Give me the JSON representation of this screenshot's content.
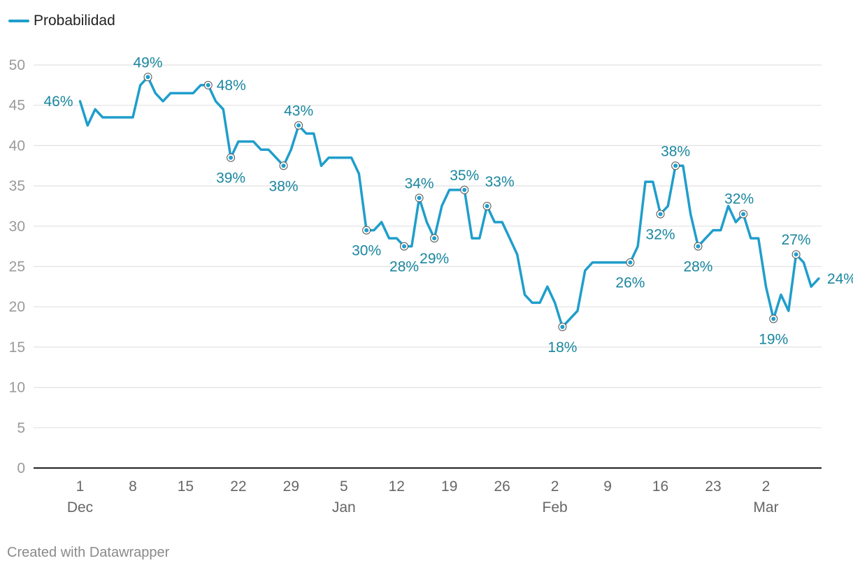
{
  "legend": {
    "label": "Probabilidad",
    "color": "#1f9ecb"
  },
  "footer": "Created with Datawrapper",
  "colors": {
    "line": "#1f9ecb",
    "annotation": "#19869f",
    "grid": "#e2e2e2",
    "axis": "#222222"
  },
  "chart_data": {
    "type": "line",
    "title": "",
    "xlabel": "",
    "ylabel": "",
    "ylim": [
      0,
      50
    ],
    "grid": true,
    "legend": "top-left",
    "yticks": [
      "0",
      "5",
      "10",
      "15",
      "20",
      "25",
      "30",
      "35",
      "40",
      "45",
      "50"
    ],
    "xticks": [
      {
        "day": 0,
        "label": "1",
        "sub": "Dec"
      },
      {
        "day": 7,
        "label": "8",
        "sub": ""
      },
      {
        "day": 14,
        "label": "15",
        "sub": ""
      },
      {
        "day": 21,
        "label": "22",
        "sub": ""
      },
      {
        "day": 28,
        "label": "29",
        "sub": ""
      },
      {
        "day": 35,
        "label": "5",
        "sub": "Jan"
      },
      {
        "day": 42,
        "label": "12",
        "sub": ""
      },
      {
        "day": 49,
        "label": "19",
        "sub": ""
      },
      {
        "day": 56,
        "label": "26",
        "sub": ""
      },
      {
        "day": 63,
        "label": "2",
        "sub": "Feb"
      },
      {
        "day": 70,
        "label": "9",
        "sub": ""
      },
      {
        "day": 77,
        "label": "16",
        "sub": ""
      },
      {
        "day": 84,
        "label": "23",
        "sub": ""
      },
      {
        "day": 91,
        "label": "2",
        "sub": "Mar"
      }
    ],
    "series": [
      {
        "name": "Probabilidad",
        "points": [
          [
            0,
            45.5
          ],
          [
            1,
            42.5
          ],
          [
            2,
            44.5
          ],
          [
            3,
            43.5
          ],
          [
            4,
            43.5
          ],
          [
            5,
            43.5
          ],
          [
            6,
            43.5
          ],
          [
            7,
            43.5
          ],
          [
            8,
            47.5
          ],
          [
            9,
            48.5
          ],
          [
            10,
            46.5
          ],
          [
            11,
            45.5
          ],
          [
            12,
            46.5
          ],
          [
            13,
            46.5
          ],
          [
            14,
            46.5
          ],
          [
            15,
            46.5
          ],
          [
            16,
            47.5
          ],
          [
            17,
            47.5
          ],
          [
            18,
            45.5
          ],
          [
            19,
            44.5
          ],
          [
            20,
            38.5
          ],
          [
            21,
            40.5
          ],
          [
            22,
            40.5
          ],
          [
            23,
            40.5
          ],
          [
            24,
            39.5
          ],
          [
            25,
            39.5
          ],
          [
            26,
            38.5
          ],
          [
            27,
            37.5
          ],
          [
            28,
            39.5
          ],
          [
            29,
            42.5
          ],
          [
            30,
            41.5
          ],
          [
            31,
            41.5
          ],
          [
            32,
            37.5
          ],
          [
            33,
            38.5
          ],
          [
            34,
            38.5
          ],
          [
            35,
            38.5
          ],
          [
            36,
            38.5
          ],
          [
            37,
            36.5
          ],
          [
            38,
            29.5
          ],
          [
            39,
            29.5
          ],
          [
            40,
            30.5
          ],
          [
            41,
            28.5
          ],
          [
            42,
            28.5
          ],
          [
            43,
            27.5
          ],
          [
            44,
            27.5
          ],
          [
            45,
            33.5
          ],
          [
            46,
            30.5
          ],
          [
            47,
            28.5
          ],
          [
            48,
            32.5
          ],
          [
            49,
            34.5
          ],
          [
            50,
            34.5
          ],
          [
            51,
            34.5
          ],
          [
            52,
            28.5
          ],
          [
            53,
            28.5
          ],
          [
            54,
            32.5
          ],
          [
            55,
            30.5
          ],
          [
            56,
            30.5
          ],
          [
            57,
            28.5
          ],
          [
            58,
            26.5
          ],
          [
            59,
            21.5
          ],
          [
            60,
            20.5
          ],
          [
            61,
            20.5
          ],
          [
            62,
            22.5
          ],
          [
            63,
            20.5
          ],
          [
            64,
            17.5
          ],
          [
            65,
            18.5
          ],
          [
            66,
            19.5
          ],
          [
            67,
            24.5
          ],
          [
            68,
            25.5
          ],
          [
            69,
            25.5
          ],
          [
            70,
            25.5
          ],
          [
            71,
            25.5
          ],
          [
            72,
            25.5
          ],
          [
            73,
            25.5
          ],
          [
            74,
            27.5
          ],
          [
            75,
            35.5
          ],
          [
            76,
            35.5
          ],
          [
            77,
            31.5
          ],
          [
            78,
            32.5
          ],
          [
            79,
            37.5
          ],
          [
            80,
            37.5
          ],
          [
            81,
            31.5
          ],
          [
            82,
            27.5
          ],
          [
            83,
            28.5
          ],
          [
            84,
            29.5
          ],
          [
            85,
            29.5
          ],
          [
            86,
            32.5
          ],
          [
            87,
            30.5
          ],
          [
            88,
            31.5
          ],
          [
            89,
            28.5
          ],
          [
            90,
            28.5
          ],
          [
            91,
            22.5
          ],
          [
            92,
            18.5
          ],
          [
            93,
            21.5
          ],
          [
            94,
            19.5
          ],
          [
            95,
            26.5
          ],
          [
            96,
            25.5
          ],
          [
            97,
            22.5
          ],
          [
            98,
            23.5
          ]
        ]
      }
    ],
    "annotations": [
      {
        "day": 0,
        "value": 45.5,
        "label": "46%",
        "marker": false,
        "pos": "left"
      },
      {
        "day": 9,
        "value": 48.5,
        "label": "49%",
        "marker": true,
        "pos": "above"
      },
      {
        "day": 17,
        "value": 47.5,
        "label": "48%",
        "marker": true,
        "pos": "right"
      },
      {
        "day": 20,
        "value": 38.5,
        "label": "39%",
        "marker": true,
        "pos": "below"
      },
      {
        "day": 27,
        "value": 37.5,
        "label": "38%",
        "marker": true,
        "pos": "below"
      },
      {
        "day": 29,
        "value": 42.5,
        "label": "43%",
        "marker": true,
        "pos": "above"
      },
      {
        "day": 38,
        "value": 29.5,
        "label": "30%",
        "marker": true,
        "pos": "below"
      },
      {
        "day": 43,
        "value": 27.5,
        "label": "28%",
        "marker": true,
        "pos": "below"
      },
      {
        "day": 45,
        "value": 33.5,
        "label": "34%",
        "marker": true,
        "pos": "above"
      },
      {
        "day": 47,
        "value": 28.5,
        "label": "29%",
        "marker": true,
        "pos": "below"
      },
      {
        "day": 51,
        "value": 34.5,
        "label": "35%",
        "marker": true,
        "pos": "above"
      },
      {
        "day": 54,
        "value": 32.5,
        "label": "33%",
        "marker": true,
        "pos": "aboveRight"
      },
      {
        "day": 64,
        "value": 17.5,
        "label": "18%",
        "marker": true,
        "pos": "below"
      },
      {
        "day": 73,
        "value": 25.5,
        "label": "26%",
        "marker": true,
        "pos": "below"
      },
      {
        "day": 77,
        "value": 31.5,
        "label": "32%",
        "marker": true,
        "pos": "below"
      },
      {
        "day": 79,
        "value": 37.5,
        "label": "38%",
        "marker": true,
        "pos": "above"
      },
      {
        "day": 82,
        "value": 27.5,
        "label": "28%",
        "marker": true,
        "pos": "below"
      },
      {
        "day": 88,
        "value": 31.5,
        "label": "32%",
        "marker": true,
        "pos": "aboveLeft"
      },
      {
        "day": 92,
        "value": 18.5,
        "label": "19%",
        "marker": true,
        "pos": "below"
      },
      {
        "day": 95,
        "value": 26.5,
        "label": "27%",
        "marker": true,
        "pos": "above"
      },
      {
        "day": 98,
        "value": 23.5,
        "label": "24%",
        "marker": false,
        "pos": "right"
      }
    ]
  }
}
